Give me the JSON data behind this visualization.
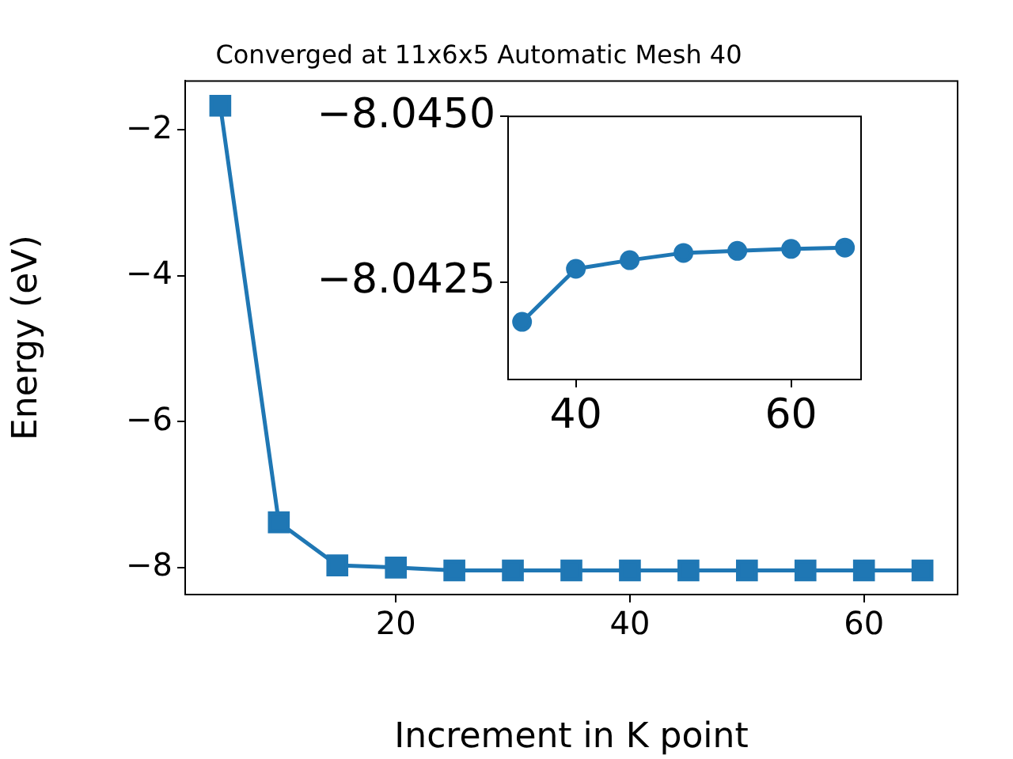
{
  "chart_data": [
    {
      "type": "line",
      "title": "Converged at 11x6x5 Automatic Mesh 40",
      "xlabel": "Increment in K point",
      "ylabel": "Energy (eV)",
      "x": [
        5,
        10,
        15,
        20,
        25,
        30,
        35,
        40,
        45,
        50,
        55,
        60,
        65
      ],
      "values": [
        -1.67,
        -7.38,
        -7.97,
        -8.0,
        -8.04,
        -8.04,
        -8.04,
        -8.04,
        -8.04,
        -8.04,
        -8.04,
        -8.04,
        -8.04
      ],
      "color": "#1f77b4",
      "marker": "square",
      "xlim": [
        2.0,
        68.0
      ],
      "ylim": [
        -8.37,
        -1.33
      ],
      "xticks": [
        20,
        40,
        60
      ],
      "yticks": [
        -2,
        -4,
        -6,
        -8
      ],
      "grid": false,
      "legend": false
    },
    {
      "type": "line",
      "x": [
        35,
        40,
        45,
        50,
        55,
        60,
        65
      ],
      "values": [
        -8.0419,
        -8.0427,
        -8.04283,
        -8.04294,
        -8.04297,
        -8.043,
        -8.04302
      ],
      "color": "#1f77b4",
      "marker": "circle",
      "xlim": [
        33.7,
        66.5
      ],
      "ylim": [
        -8.04103,
        -8.045
      ],
      "xticks": [
        40,
        60
      ],
      "yticks": [
        {
          "value": -8.045,
          "label": "−8.0450"
        },
        {
          "value": -8.0425,
          "label": "−8.0425"
        }
      ],
      "grid": false,
      "legend": false
    }
  ]
}
